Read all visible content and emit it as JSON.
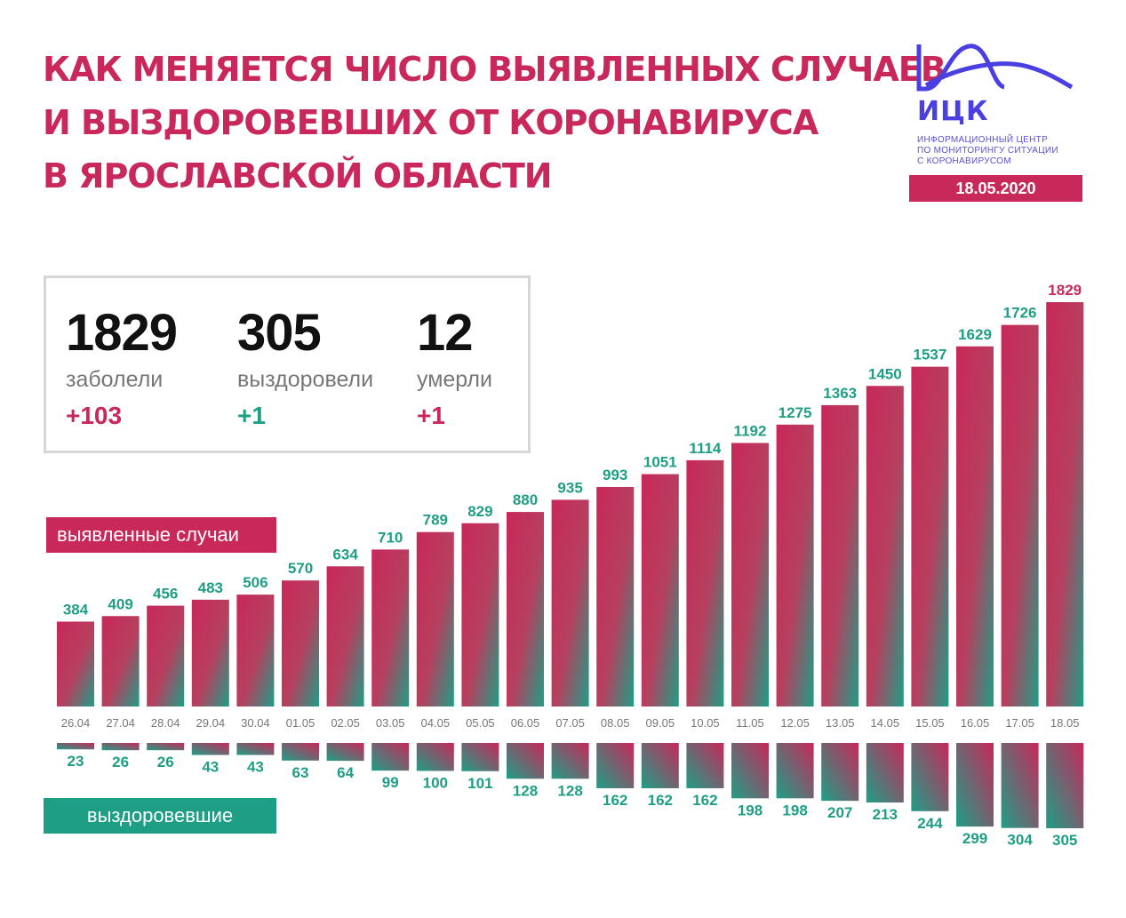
{
  "title_lines": [
    "КАК МЕНЯЕТСЯ ЧИСЛО ВЫЯВЛЕННЫХ СЛУЧАЕВ",
    "И ВЫЗДОРОВЕВШИХ ОТ КОРОНАВИРУСА",
    "В ЯРОСЛАВСКОЙ ОБЛАСТИ"
  ],
  "logo": {
    "name": "ИЦК",
    "subtitle_lines": [
      "ИНФОРМАЦИОННЫЙ ЦЕНТР",
      "ПО МОНИТОРИНГУ СИТУАЦИИ",
      "С КОРОНАВИРУСОМ"
    ]
  },
  "date": "18.05.2020",
  "summary": {
    "cases": {
      "value": "1829",
      "label": "заболели",
      "delta": "+103"
    },
    "recovered": {
      "value": "305",
      "label": "выздоровели",
      "delta": "+1"
    },
    "deaths": {
      "value": "12",
      "label": "умерли",
      "delta": "+1"
    }
  },
  "legend": {
    "cases": "выявленные случаи",
    "recovered": "выздоровевшие"
  },
  "colors": {
    "pink": "#c8285a",
    "green": "#1f9e86",
    "logo": "#4a3fe0"
  },
  "chart_data": {
    "type": "bar",
    "categories": [
      "26.04",
      "27.04",
      "28.04",
      "29.04",
      "30.04",
      "01.05",
      "02.05",
      "03.05",
      "04.05",
      "05.05",
      "06.05",
      "07.05",
      "08.05",
      "09.05",
      "10.05",
      "11.05",
      "12.05",
      "13.05",
      "14.05",
      "15.05",
      "16.05",
      "17.05",
      "18.05"
    ],
    "series": [
      {
        "name": "выявленные случаи",
        "values": [
          384,
          409,
          456,
          483,
          506,
          570,
          634,
          710,
          789,
          829,
          880,
          935,
          993,
          1051,
          1114,
          1192,
          1275,
          1363,
          1450,
          1537,
          1629,
          1726,
          1829
        ]
      },
      {
        "name": "выздоровевшие",
        "values": [
          23,
          26,
          26,
          43,
          43,
          63,
          64,
          99,
          100,
          101,
          128,
          128,
          162,
          162,
          162,
          198,
          198,
          207,
          213,
          244,
          299,
          304,
          305
        ]
      }
    ]
  }
}
